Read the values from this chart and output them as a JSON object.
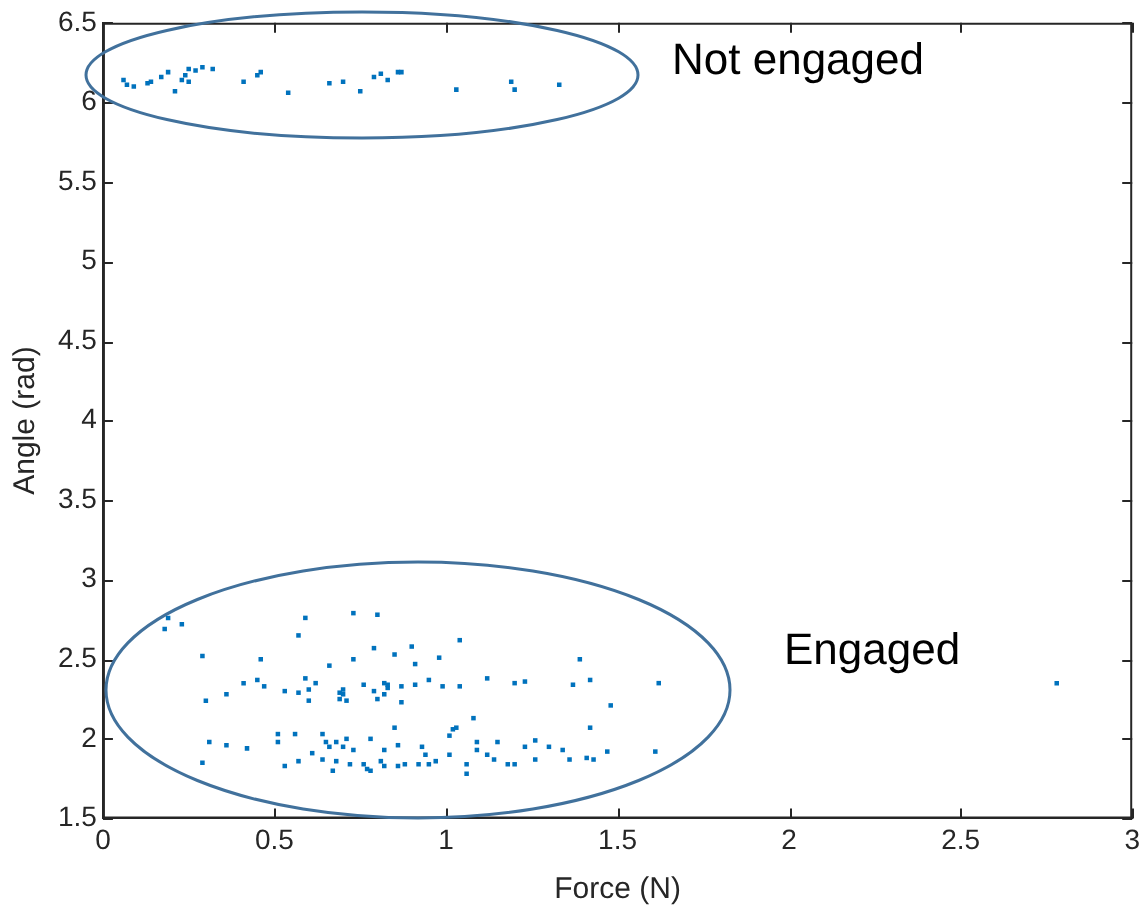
{
  "chart_data": {
    "type": "scatter",
    "xlabel": "Force (N)",
    "ylabel": "Angle (rad)",
    "xlim": [
      0,
      3
    ],
    "xticks": [
      0,
      0.5,
      1,
      1.5,
      2,
      2.5,
      3
    ],
    "ylim": [
      1.5,
      6.5
    ],
    "yticks": [
      1.5,
      2,
      2.5,
      3,
      3.5,
      4,
      4.5,
      5,
      5.5,
      6,
      6.5
    ],
    "marker": "square",
    "annotations": [
      "Not engaged",
      "Engaged"
    ],
    "series": [
      {
        "color": "#0072bd",
        "x": [
          0.06,
          0.07,
          0.09,
          0.13,
          0.14,
          0.17,
          0.19,
          0.21,
          0.23,
          0.24,
          0.25,
          0.25,
          0.27,
          0.29,
          0.32,
          0.41,
          0.45,
          0.46,
          0.54,
          0.66,
          0.7,
          0.75,
          0.79,
          0.81,
          0.83,
          0.86,
          0.87,
          1.03,
          1.19,
          1.2,
          1.33,
          0.18,
          0.19,
          0.23,
          0.29,
          0.29,
          0.3,
          0.31,
          0.36,
          0.36,
          0.41,
          0.42,
          0.45,
          0.46,
          0.47,
          0.51,
          0.51,
          0.53,
          0.53,
          0.56,
          0.57,
          0.57,
          0.59,
          0.57,
          0.59,
          0.6,
          0.6,
          0.61,
          0.62,
          0.64,
          0.64,
          0.65,
          0.66,
          0.66,
          0.67,
          0.68,
          0.68,
          0.69,
          0.69,
          0.7,
          0.7,
          0.7,
          0.71,
          0.71,
          0.72,
          0.73,
          0.73,
          0.73,
          0.76,
          0.76,
          0.77,
          0.78,
          0.78,
          0.79,
          0.79,
          0.8,
          0.8,
          0.81,
          0.82,
          0.82,
          0.82,
          0.82,
          0.83,
          0.83,
          0.85,
          0.85,
          0.86,
          0.86,
          0.87,
          0.87,
          0.88,
          0.9,
          0.91,
          0.91,
          0.92,
          0.93,
          0.94,
          0.95,
          0.95,
          0.97,
          0.98,
          0.99,
          1.01,
          1.01,
          1.02,
          1.03,
          1.04,
          1.04,
          1.06,
          1.06,
          1.08,
          1.09,
          1.09,
          1.12,
          1.12,
          1.14,
          1.15,
          1.18,
          1.2,
          1.2,
          1.23,
          1.23,
          1.26,
          1.26,
          1.3,
          1.34,
          1.36,
          1.37,
          1.39,
          1.41,
          1.42,
          1.42,
          1.43,
          1.47,
          1.48,
          1.61,
          1.62,
          2.78
        ],
        "values": [
          6.14,
          6.11,
          6.1,
          6.12,
          6.13,
          6.16,
          6.19,
          6.07,
          6.14,
          6.17,
          6.21,
          6.13,
          6.2,
          6.22,
          6.21,
          6.13,
          6.17,
          6.19,
          6.06,
          6.12,
          6.13,
          6.07,
          6.16,
          6.18,
          6.14,
          6.19,
          6.19,
          6.08,
          6.13,
          6.08,
          6.11,
          2.69,
          2.76,
          2.72,
          2.52,
          1.85,
          2.24,
          1.98,
          2.28,
          1.96,
          2.35,
          1.94,
          2.37,
          2.5,
          2.33,
          2.03,
          1.98,
          2.3,
          1.83,
          2.03,
          2.29,
          2.65,
          2.76,
          1.86,
          2.38,
          2.31,
          2.24,
          1.91,
          2.35,
          1.87,
          2.03,
          1.98,
          2.46,
          1.95,
          1.8,
          1.98,
          1.86,
          2.29,
          2.25,
          2.28,
          1.95,
          2.31,
          2.0,
          2.24,
          1.84,
          2.79,
          2.5,
          1.93,
          2.34,
          1.84,
          1.81,
          2.0,
          1.8,
          2.3,
          2.57,
          2.25,
          2.78,
          1.86,
          2.35,
          2.28,
          1.93,
          1.83,
          2.32,
          2.34,
          2.07,
          2.53,
          1.96,
          1.83,
          2.33,
          2.23,
          1.84,
          2.58,
          2.47,
          2.34,
          1.84,
          1.95,
          1.9,
          2.37,
          1.84,
          1.86,
          2.51,
          2.33,
          2.02,
          1.9,
          2.06,
          2.07,
          2.33,
          2.62,
          1.84,
          1.78,
          2.13,
          1.98,
          1.93,
          2.38,
          1.9,
          1.87,
          1.98,
          1.84,
          1.84,
          2.35,
          1.95,
          2.36,
          1.99,
          1.87,
          1.95,
          1.93,
          1.87,
          2.34,
          2.5,
          1.88,
          2.37,
          2.07,
          1.87,
          1.92,
          2.21,
          1.92,
          2.35,
          2.35
        ]
      }
    ]
  }
}
